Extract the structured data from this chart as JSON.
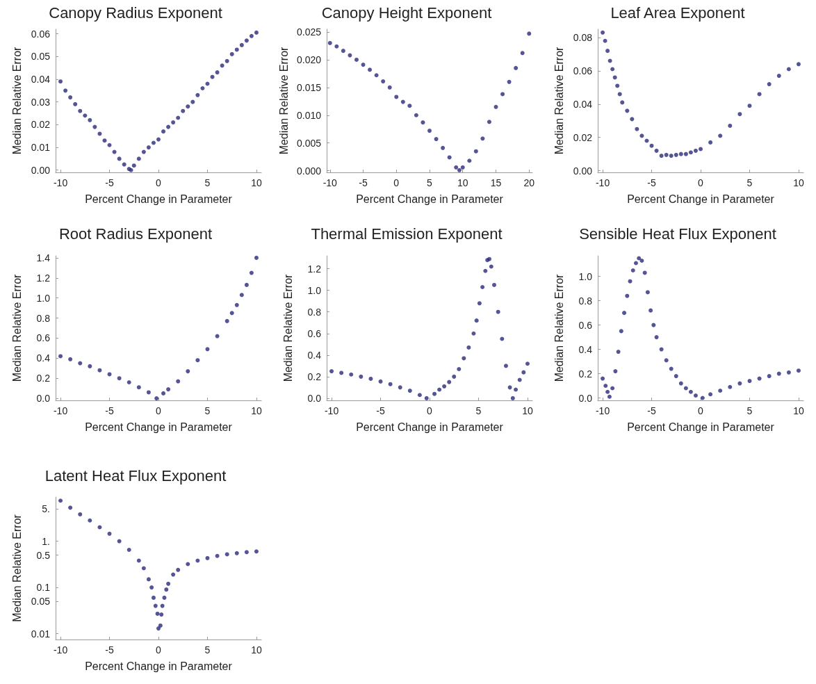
{
  "chart_data": [
    {
      "type": "scatter",
      "title": "Canopy Radius Exponent",
      "xlabel": "Percent Change in Parameter",
      "ylabel": "Median Relative Error",
      "marker": "circle",
      "grid": false,
      "log": false,
      "xlim": [
        -10.5,
        10.5
      ],
      "xticks": [
        -10,
        -5,
        0,
        5,
        10
      ],
      "ylim": [
        -0.001,
        0.062
      ],
      "yticks": [
        {
          "value": 0,
          "label": "0.00"
        },
        0.01,
        0.02,
        0.03,
        0.04,
        0.05,
        0.06
      ],
      "series": [
        {
          "color": "#2b2b7a",
          "x": [
            -10,
            -9.5,
            -9,
            -8.5,
            -8,
            -7.5,
            -7,
            -6.5,
            -6,
            -5.5,
            -5,
            -4.5,
            -4,
            -3.5,
            -3,
            -2.8,
            -2.5,
            -2,
            -1.5,
            -1,
            -0.5,
            0,
            0.5,
            1,
            1.5,
            2,
            2.5,
            3,
            3.5,
            4,
            4.5,
            5,
            5.5,
            6,
            6.5,
            7,
            7.5,
            8,
            8.5,
            9,
            9.5,
            10
          ],
          "values": [
            0.039,
            0.035,
            0.032,
            0.029,
            0.026,
            0.024,
            0.022,
            0.019,
            0.016,
            0.013,
            0.011,
            0.008,
            0.005,
            0.0025,
            0.0005,
            0,
            0.002,
            0.005,
            0.008,
            0.01,
            0.012,
            0.0135,
            0.017,
            0.019,
            0.021,
            0.023,
            0.026,
            0.028,
            0.03,
            0.033,
            0.036,
            0.038,
            0.041,
            0.043,
            0.046,
            0.048,
            0.051,
            0.053,
            0.055,
            0.057,
            0.059,
            0.0605
          ]
        }
      ]
    },
    {
      "type": "scatter",
      "title": "Canopy Height Exponent",
      "xlabel": "Percent Change in Parameter",
      "ylabel": "Median Relative Error",
      "marker": "circle",
      "grid": false,
      "log": false,
      "xlim": [
        -10.5,
        20.5
      ],
      "xticks": [
        -10,
        -5,
        0,
        5,
        10,
        15,
        20
      ],
      "ylim": [
        -0.0003,
        0.0255
      ],
      "yticks": [
        {
          "value": 0,
          "label": "0.000"
        },
        0.005,
        {
          "value": 0.01,
          "label": "0.010"
        },
        0.015,
        {
          "value": 0.02,
          "label": "0.020"
        },
        0.025
      ],
      "series": [
        {
          "color": "#2b2b7a",
          "x": [
            -10,
            -9,
            -8,
            -7,
            -6,
            -5,
            -4,
            -3,
            -2,
            -1,
            0,
            1,
            2,
            3,
            4,
            5,
            6,
            7,
            8,
            9,
            9.5,
            10,
            11,
            12,
            13,
            14,
            15,
            16,
            17,
            18,
            19,
            20
          ],
          "values": [
            0.023,
            0.0224,
            0.0216,
            0.0208,
            0.02,
            0.0191,
            0.0182,
            0.0172,
            0.0161,
            0.015,
            0.0133,
            0.0124,
            0.0117,
            0.01,
            0.0087,
            0.0072,
            0.0057,
            0.0041,
            0.0024,
            0.0006,
            0.0001,
            0.0006,
            0.0018,
            0.0035,
            0.0058,
            0.0088,
            0.0115,
            0.0138,
            0.016,
            0.0185,
            0.0212,
            0.0247
          ]
        }
      ]
    },
    {
      "type": "scatter",
      "title": "Leaf Area Exponent",
      "xlabel": "Percent Change in Parameter",
      "ylabel": "Median Relative Error",
      "marker": "circle",
      "grid": false,
      "log": false,
      "xlim": [
        -10.5,
        10.5
      ],
      "xticks": [
        -10,
        -5,
        0,
        5,
        10
      ],
      "ylim": [
        -0.001,
        0.085
      ],
      "yticks": [
        {
          "value": 0,
          "label": "0.00"
        },
        0.02,
        0.04,
        0.06,
        0.08
      ],
      "series": [
        {
          "color": "#2b2b7a",
          "x": [
            -10,
            -9.75,
            -9.5,
            -9.25,
            -9,
            -8.75,
            -8.5,
            -8.25,
            -8,
            -7.5,
            -7,
            -6.5,
            -6,
            -5.5,
            -5,
            -4.5,
            -4,
            -3.5,
            -3,
            -2.5,
            -2,
            -1.5,
            -1,
            -0.5,
            0,
            1,
            2,
            3,
            4,
            5,
            6,
            7,
            8,
            9,
            10
          ],
          "values": [
            0.083,
            0.078,
            0.072,
            0.066,
            0.061,
            0.056,
            0.051,
            0.046,
            0.041,
            0.036,
            0.031,
            0.025,
            0.021,
            0.018,
            0.015,
            0.012,
            0.009,
            0.0095,
            0.009,
            0.0095,
            0.01,
            0.01,
            0.011,
            0.012,
            0.013,
            0.017,
            0.021,
            0.027,
            0.034,
            0.039,
            0.046,
            0.052,
            0.057,
            0.061,
            0.064
          ]
        }
      ]
    },
    {
      "type": "scatter",
      "title": "Root Radius Exponent",
      "xlabel": "Percent Change in Parameter",
      "ylabel": "Median Relative Error",
      "marker": "circle",
      "grid": false,
      "log": false,
      "xlim": [
        -10.5,
        10.5
      ],
      "xticks": [
        -10,
        -5,
        0,
        5,
        10
      ],
      "ylim": [
        -0.02,
        1.42
      ],
      "yticks": [
        {
          "value": 0,
          "label": "0.0"
        },
        0.2,
        0.4,
        0.6,
        0.8,
        {
          "value": 1,
          "label": "1.0"
        },
        1.2,
        1.4
      ],
      "series": [
        {
          "color": "#2b2b7a",
          "x": [
            -10,
            -9,
            -8,
            -7,
            -6,
            -5,
            -4,
            -3,
            -2,
            -1,
            -0.2,
            0.5,
            1,
            2,
            3,
            4,
            5,
            6,
            7,
            7.5,
            8,
            8.5,
            9,
            9.5,
            10
          ],
          "values": [
            0.42,
            0.39,
            0.35,
            0.32,
            0.28,
            0.24,
            0.2,
            0.16,
            0.11,
            0.06,
            0,
            0.05,
            0.09,
            0.17,
            0.27,
            0.38,
            0.49,
            0.62,
            0.77,
            0.85,
            0.93,
            1.03,
            1.13,
            1.25,
            1.4
          ]
        }
      ]
    },
    {
      "type": "scatter",
      "title": "Thermal Emission Exponent",
      "xlabel": "Percent Change in Parameter",
      "ylabel": "Median Relative Error",
      "marker": "circle",
      "grid": false,
      "log": false,
      "xlim": [
        -10.5,
        10.5
      ],
      "xticks": [
        -10,
        -5,
        0,
        5,
        10
      ],
      "ylim": [
        -0.02,
        1.32
      ],
      "yticks": [
        {
          "value": 0,
          "label": "0.0"
        },
        0.2,
        0.4,
        0.6,
        0.8,
        {
          "value": 1,
          "label": "1.0"
        },
        1.2
      ],
      "series": [
        {
          "color": "#2b2b7a",
          "x": [
            -10,
            -9,
            -8,
            -7,
            -6,
            -5,
            -4,
            -3,
            -2,
            -1,
            -0.3,
            0.5,
            1,
            1.5,
            2,
            2.5,
            3,
            3.5,
            4,
            4.5,
            4.8,
            5.1,
            5.4,
            5.7,
            5.9,
            6.1,
            6.3,
            6.6,
            7,
            7.4,
            7.8,
            8.2,
            8.5,
            8.8,
            9.2,
            9.6,
            10
          ],
          "values": [
            0.25,
            0.235,
            0.22,
            0.2,
            0.18,
            0.155,
            0.13,
            0.1,
            0.07,
            0.03,
            0,
            0.04,
            0.08,
            0.11,
            0.15,
            0.2,
            0.27,
            0.37,
            0.47,
            0.6,
            0.72,
            0.88,
            1.03,
            1.18,
            1.28,
            1.29,
            1.22,
            1.05,
            0.8,
            0.55,
            0.3,
            0.1,
            0,
            0.08,
            0.17,
            0.24,
            0.32
          ]
        }
      ]
    },
    {
      "type": "scatter",
      "title": "Sensible Heat Flux Exponent",
      "xlabel": "Percent Change in Parameter",
      "ylabel": "Median Relative Error",
      "marker": "circle",
      "grid": false,
      "log": false,
      "xlim": [
        -10.5,
        10.5
      ],
      "xticks": [
        -10,
        -5,
        0,
        5,
        10
      ],
      "ylim": [
        -0.02,
        1.17
      ],
      "yticks": [
        {
          "value": 0,
          "label": "0.0"
        },
        0.2,
        0.4,
        0.6,
        0.8,
        {
          "value": 1,
          "label": "1.0"
        }
      ],
      "series": [
        {
          "color": "#2b2b7a",
          "x": [
            -10,
            -9.7,
            -9.5,
            -9.3,
            -9,
            -8.7,
            -8.4,
            -8.1,
            -7.8,
            -7.5,
            -7.2,
            -6.9,
            -6.6,
            -6.3,
            -6,
            -5.7,
            -5.4,
            -5.1,
            -4.8,
            -4.5,
            -4,
            -3.5,
            -3,
            -2.5,
            -2,
            -1.5,
            -1,
            -0.5,
            0.2,
            1,
            2,
            3,
            4,
            5,
            6,
            7,
            8,
            9,
            10
          ],
          "values": [
            0.16,
            0.1,
            0.05,
            0.01,
            0.08,
            0.22,
            0.38,
            0.55,
            0.7,
            0.84,
            0.96,
            1.05,
            1.11,
            1.15,
            1.13,
            1.03,
            0.87,
            0.72,
            0.6,
            0.5,
            0.4,
            0.31,
            0.24,
            0.18,
            0.12,
            0.08,
            0.05,
            0.02,
            0,
            0.03,
            0.06,
            0.09,
            0.12,
            0.14,
            0.16,
            0.18,
            0.2,
            0.21,
            0.225
          ]
        }
      ]
    },
    {
      "type": "scatter",
      "title": "Latent Heat Flux Exponent",
      "xlabel": "Percent Change in Parameter",
      "ylabel": "Median Relative Error",
      "marker": "circle",
      "grid": false,
      "log": true,
      "xlim": [
        -10.5,
        10.5
      ],
      "xticks": [
        -10,
        -5,
        0,
        5,
        10
      ],
      "ylim": [
        0.0075,
        9
      ],
      "yticks": [
        0.01,
        0.05,
        0.1,
        0.5,
        {
          "value": 1,
          "label": "1."
        },
        {
          "value": 5,
          "label": "5."
        }
      ],
      "series": [
        {
          "color": "#2b2b7a",
          "x": [
            -10,
            -9,
            -8,
            -7,
            -6,
            -5,
            -4,
            -3,
            -2,
            -1.5,
            -1,
            -0.7,
            -0.5,
            -0.3,
            -0.1,
            0,
            0.2,
            0.3,
            0.4,
            0.6,
            0.8,
            1,
            1.5,
            2,
            3,
            4,
            5,
            6,
            7,
            8,
            9,
            10
          ],
          "values": [
            7.5,
            5.3,
            3.8,
            2.8,
            2,
            1.45,
            1,
            0.65,
            0.38,
            0.26,
            0.15,
            0.1,
            0.06,
            0.04,
            0.027,
            0.013,
            0.015,
            0.026,
            0.04,
            0.06,
            0.09,
            0.12,
            0.19,
            0.24,
            0.32,
            0.38,
            0.43,
            0.48,
            0.52,
            0.55,
            0.58,
            0.6
          ]
        }
      ]
    }
  ]
}
